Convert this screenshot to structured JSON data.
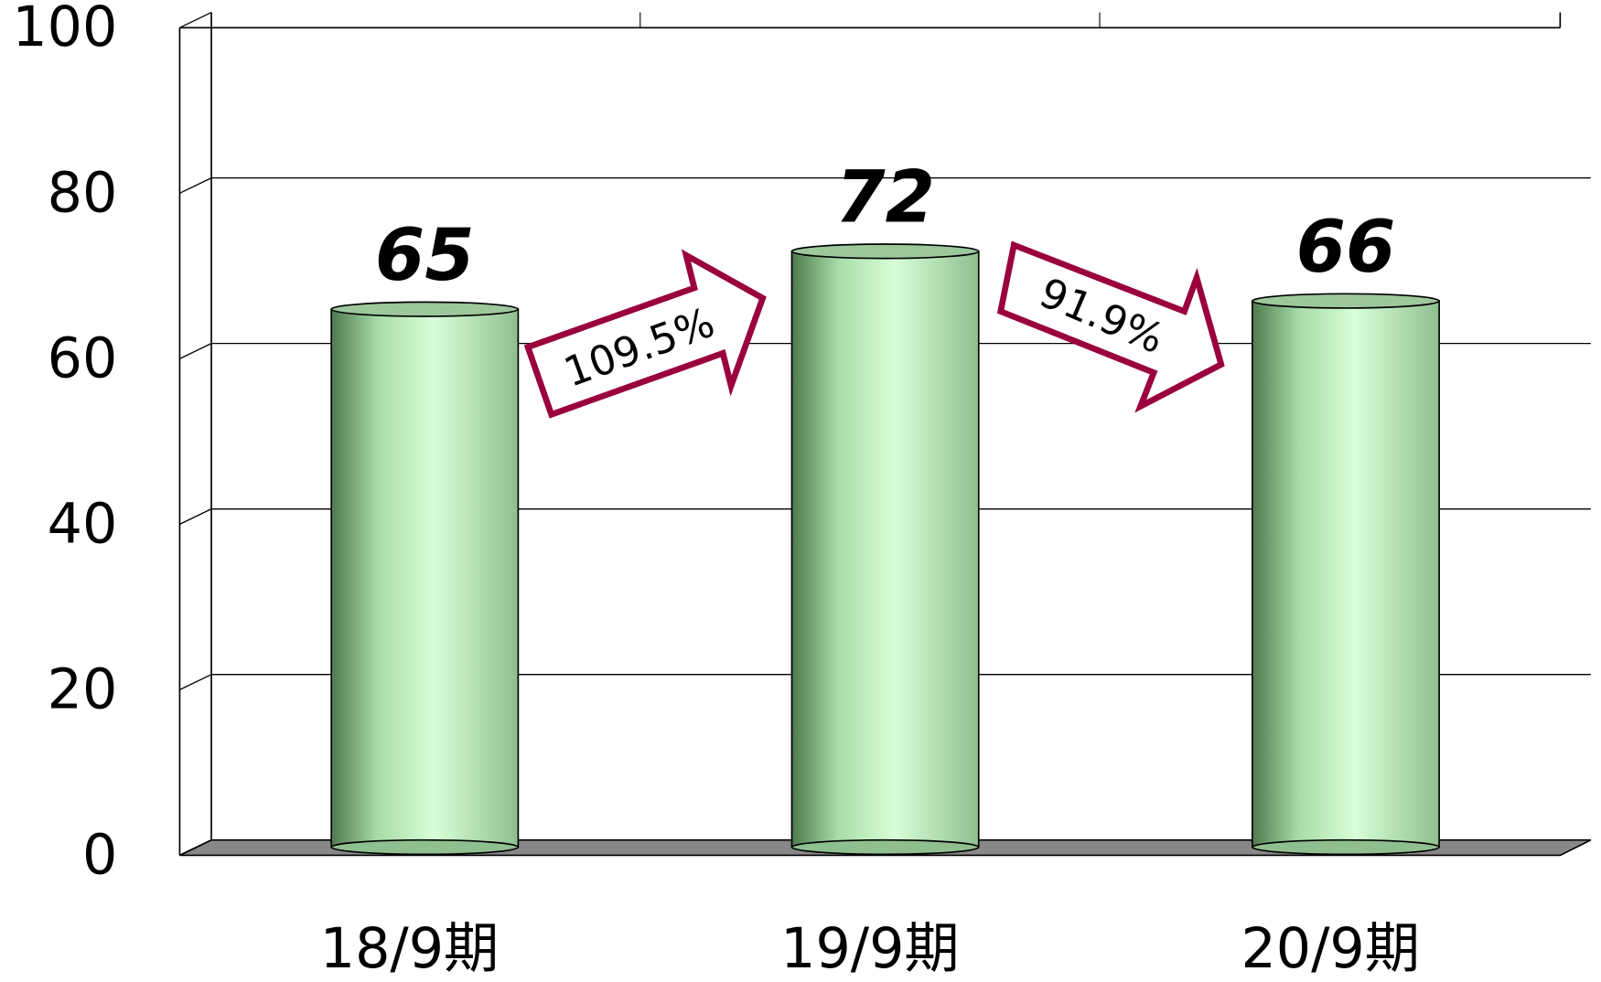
{
  "chart_data": {
    "type": "bar",
    "categories": [
      "18/9期",
      "19/9期",
      "20/9期"
    ],
    "values": [
      65,
      72,
      66
    ],
    "color": "#c8ffc8",
    "ylim": [
      0,
      100
    ],
    "yticks": [
      0,
      20,
      40,
      60,
      80,
      100
    ],
    "grid": true,
    "annotations": [
      "109.5%",
      "91.9%"
    ]
  }
}
